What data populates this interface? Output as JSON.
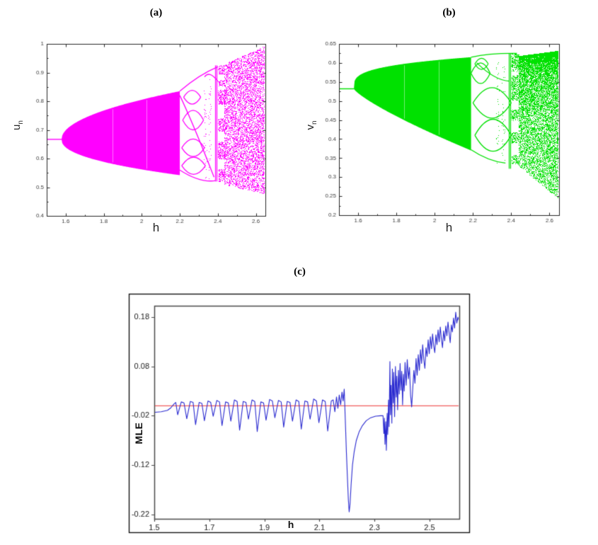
{
  "page": {
    "background": "#ffffff"
  },
  "chart_data": [
    {
      "id": "a",
      "type": "bifurcation-scatter",
      "title": "(a)",
      "xlabel": "h",
      "ylabel_display": "u_n",
      "ylabel_main": "u",
      "ylabel_sub": "n",
      "color": "#ff00ff",
      "axis_color": "#262626",
      "tick_label_color": "#404040",
      "xlim": [
        1.5,
        2.65
      ],
      "ylim": [
        0.4,
        1.0
      ],
      "xticks": [
        1.6,
        1.8,
        2,
        2.2,
        2.4,
        2.6
      ],
      "yticks": [
        0.4,
        0.5,
        0.6,
        0.7,
        0.8,
        0.9,
        1
      ],
      "fixed_point": {
        "y": 0.667,
        "h_start": 1.5,
        "h_end": 1.578
      },
      "ns_band": {
        "h0": 1.578,
        "h1": 2.2,
        "top_amp": 0.168,
        "top_exp": 0.5,
        "bot_amp": 0.125,
        "bot_exp": 0.45
      },
      "white_striations": [
        1.845,
        2.025
      ],
      "window": {
        "h0": 2.2,
        "h1": 2.435,
        "bubbles": [
          [
            2.21,
            2.335,
            0.545,
            0.605
          ],
          [
            2.21,
            2.33,
            0.607,
            0.668
          ],
          [
            2.215,
            2.325,
            0.7,
            0.768
          ],
          [
            2.22,
            2.31,
            0.79,
            0.838
          ]
        ],
        "curves": [
          [
            2.2,
            0.835,
            2.3,
            0.885,
            2.4,
            0.92
          ],
          [
            2.2,
            0.82,
            2.28,
            0.7,
            2.38,
            0.535
          ],
          [
            2.2,
            0.56,
            2.3,
            0.528,
            2.39,
            0.523
          ],
          [
            2.33,
            0.885,
            2.36,
            0.893,
            2.4,
            0.87
          ]
        ],
        "dot_columns": [
          [
            2.33,
            2.372,
            0.52,
            0.9
          ]
        ],
        "vlines": [
          [
            2.387,
            0.52,
            0.925
          ],
          [
            2.395,
            0.52,
            0.925
          ]
        ],
        "stub_bands": [
          [
            2.401,
            2.435,
            0.52,
            0.565
          ],
          [
            2.401,
            2.435,
            0.6,
            0.66
          ],
          [
            2.401,
            2.435,
            0.695,
            0.74
          ],
          [
            2.401,
            2.435,
            0.79,
            0.84
          ],
          [
            2.401,
            2.435,
            0.855,
            0.875
          ],
          [
            2.401,
            2.435,
            0.895,
            0.925
          ]
        ]
      },
      "chaos": {
        "h0": 2.435,
        "h1": 2.65,
        "top": [
          0.93,
          0.995
        ],
        "bottom": [
          0.51,
          0.476
        ],
        "density": 0.5,
        "fade": "none"
      }
    },
    {
      "id": "b",
      "type": "bifurcation-scatter",
      "title": "(b)",
      "xlabel": "h",
      "ylabel_display": "v_n",
      "ylabel_main": "v",
      "ylabel_sub": "n",
      "color": "#00e100",
      "axis_color": "#262626",
      "tick_label_color": "#404040",
      "xlim": [
        1.5,
        2.65
      ],
      "ylim": [
        0.2,
        0.65
      ],
      "xticks": [
        1.6,
        1.8,
        2,
        2.2,
        2.4,
        2.6
      ],
      "yticks": [
        0.2,
        0.25,
        0.3,
        0.35,
        0.4,
        0.45,
        0.5,
        0.55,
        0.6,
        0.65
      ],
      "fixed_point": {
        "y": 0.532,
        "h_start": 1.5,
        "h_end": 1.578
      },
      "ns_band": {
        "h0": 1.578,
        "h1": 2.19,
        "top_amp": 0.083,
        "top_exp": 0.28,
        "bot_amp": 0.162,
        "bot_exp": 0.8
      },
      "white_striations": [
        1.84,
        2.02
      ],
      "window": {
        "h0": 2.19,
        "h1": 2.44,
        "bubbles": [
          [
            2.19,
            2.29,
            0.546,
            0.6
          ],
          [
            2.2,
            2.4,
            0.455,
            0.535
          ],
          [
            2.21,
            2.4,
            0.368,
            0.452
          ],
          [
            2.21,
            2.28,
            0.583,
            0.612
          ]
        ],
        "curves": [
          [
            2.19,
            0.615,
            2.3,
            0.623,
            2.43,
            0.625
          ],
          [
            2.19,
            0.372,
            2.28,
            0.348,
            2.37,
            0.337
          ],
          [
            2.22,
            0.6,
            2.31,
            0.565,
            2.39,
            0.552
          ]
        ],
        "dot_columns": [
          [
            2.325,
            2.362,
            0.335,
            0.605
          ]
        ],
        "vlines": [
          [
            2.386,
            0.322,
            0.625
          ],
          [
            2.394,
            0.322,
            0.625
          ]
        ],
        "stub_bands": [
          [
            2.4,
            2.44,
            0.335,
            0.358
          ],
          [
            2.4,
            2.44,
            0.39,
            0.418
          ],
          [
            2.4,
            2.44,
            0.45,
            0.478
          ],
          [
            2.4,
            2.44,
            0.502,
            0.568
          ],
          [
            2.4,
            2.44,
            0.578,
            0.625
          ]
        ]
      },
      "chaos": {
        "h0": 2.44,
        "h1": 2.65,
        "top": [
          0.618,
          0.632
        ],
        "bottom": [
          0.33,
          0.242
        ],
        "density": 1.1,
        "fade": "bottom"
      }
    },
    {
      "id": "c",
      "type": "line",
      "title": "(c)",
      "xlabel": "h",
      "ylabel": "MLE",
      "line_color": "#2a2ad0",
      "axis_color": "#4a4a4a",
      "frame_color": "#141414",
      "tick_label_color": "#1a1a1a",
      "zero_line": {
        "y": 0,
        "color": "#f25c5c"
      },
      "xlim": [
        1.5,
        2.608
      ],
      "ylim": [
        -0.229,
        0.203
      ],
      "xticks": [
        1.5,
        1.7,
        1.9,
        2.1,
        2.3,
        2.5
      ],
      "yticks": [
        0.18,
        0.08,
        -0.02,
        -0.12,
        -0.22
      ],
      "points": [
        [
          1.5,
          -0.013
        ],
        [
          1.525,
          -0.012
        ],
        [
          1.548,
          -0.009
        ],
        [
          1.56,
          -0.004
        ],
        [
          1.572,
          0.004
        ],
        [
          1.578,
          0.007
        ],
        [
          1.585,
          -0.018
        ],
        [
          1.598,
          0.008
        ],
        [
          1.608,
          0.006
        ],
        [
          1.618,
          -0.026
        ],
        [
          1.631,
          0.009
        ],
        [
          1.641,
          0.007
        ],
        [
          1.65,
          -0.038
        ],
        [
          1.663,
          0.007
        ],
        [
          1.673,
          0.005
        ],
        [
          1.682,
          -0.03
        ],
        [
          1.695,
          0.01
        ],
        [
          1.705,
          0.007
        ],
        [
          1.714,
          -0.021
        ],
        [
          1.727,
          0.011
        ],
        [
          1.737,
          0.008
        ],
        [
          1.746,
          -0.04
        ],
        [
          1.759,
          0.008
        ],
        [
          1.769,
          0.006
        ],
        [
          1.778,
          -0.031
        ],
        [
          1.791,
          0.012
        ],
        [
          1.801,
          0.009
        ],
        [
          1.81,
          -0.049
        ],
        [
          1.823,
          0.009
        ],
        [
          1.833,
          0.007
        ],
        [
          1.842,
          -0.027
        ],
        [
          1.855,
          0.012
        ],
        [
          1.865,
          0.009
        ],
        [
          1.874,
          -0.052
        ],
        [
          1.887,
          0.008
        ],
        [
          1.897,
          0.006
        ],
        [
          1.906,
          -0.029
        ],
        [
          1.919,
          0.013
        ],
        [
          1.929,
          0.01
        ],
        [
          1.938,
          -0.024
        ],
        [
          1.951,
          0.011
        ],
        [
          1.961,
          0.008
        ],
        [
          1.97,
          -0.043
        ],
        [
          1.983,
          0.009
        ],
        [
          1.993,
          0.007
        ],
        [
          2.002,
          -0.031
        ],
        [
          2.015,
          0.012
        ],
        [
          2.025,
          0.009
        ],
        [
          2.034,
          -0.047
        ],
        [
          2.047,
          0.01
        ],
        [
          2.057,
          0.008
        ],
        [
          2.066,
          -0.027
        ],
        [
          2.079,
          0.014
        ],
        [
          2.089,
          0.01
        ],
        [
          2.098,
          -0.034
        ],
        [
          2.111,
          0.012
        ],
        [
          2.121,
          0.009
        ],
        [
          2.13,
          -0.051
        ],
        [
          2.143,
          0.01
        ],
        [
          2.15,
          0.012
        ],
        [
          2.156,
          -0.012
        ],
        [
          2.162,
          0.018
        ],
        [
          2.167,
          -0.005
        ],
        [
          2.172,
          0.022
        ],
        [
          2.177,
          0.002
        ],
        [
          2.182,
          0.028
        ],
        [
          2.186,
          0.01
        ],
        [
          2.19,
          0.034
        ],
        [
          2.194,
          -0.03
        ],
        [
          2.198,
          -0.095
        ],
        [
          2.202,
          -0.15
        ],
        [
          2.205,
          -0.19
        ],
        [
          2.208,
          -0.215
        ],
        [
          2.211,
          -0.2
        ],
        [
          2.215,
          -0.16
        ],
        [
          2.22,
          -0.12
        ],
        [
          2.226,
          -0.094
        ],
        [
          2.234,
          -0.07
        ],
        [
          2.244,
          -0.053
        ],
        [
          2.256,
          -0.04
        ],
        [
          2.27,
          -0.03
        ],
        [
          2.286,
          -0.024
        ],
        [
          2.304,
          -0.021
        ],
        [
          2.322,
          -0.02
        ],
        [
          2.331,
          -0.02
        ],
        [
          2.334,
          -0.056
        ],
        [
          2.336,
          -0.025
        ],
        [
          2.338,
          -0.078
        ],
        [
          2.341,
          -0.032
        ],
        [
          2.343,
          -0.09
        ],
        [
          2.346,
          -0.015
        ],
        [
          2.348,
          -0.058
        ],
        [
          2.351,
          0.012
        ],
        [
          2.353,
          -0.042
        ],
        [
          2.356,
          0.09
        ],
        [
          2.358,
          -0.018
        ],
        [
          2.36,
          0.042
        ],
        [
          2.363,
          -0.035
        ],
        [
          2.365,
          0.075
        ],
        [
          2.368,
          0.006
        ],
        [
          2.37,
          0.068
        ],
        [
          2.373,
          -0.022
        ],
        [
          2.376,
          0.08
        ],
        [
          2.379,
          0.018
        ],
        [
          2.381,
          0.06
        ],
        [
          2.384,
          -0.008
        ],
        [
          2.387,
          0.072
        ],
        [
          2.39,
          0.024
        ],
        [
          2.393,
          0.086
        ],
        [
          2.396,
          0.032
        ],
        [
          2.399,
          0.07
        ],
        [
          2.402,
          0.002
        ],
        [
          2.405,
          0.064
        ],
        [
          2.408,
          0.03
        ],
        [
          2.411,
          0.088
        ],
        [
          2.415,
          0.042
        ],
        [
          2.419,
          0.094
        ],
        [
          2.423,
          0.055
        ],
        [
          2.427,
          0.078
        ],
        [
          2.431,
          0.022
        ],
        [
          2.435,
          -0.002
        ],
        [
          2.439,
          0.036
        ],
        [
          2.443,
          0.072
        ],
        [
          2.447,
          0.046
        ],
        [
          2.451,
          0.096
        ],
        [
          2.455,
          0.062
        ],
        [
          2.459,
          0.104
        ],
        [
          2.463,
          0.072
        ],
        [
          2.467,
          0.114
        ],
        [
          2.471,
          0.086
        ],
        [
          2.475,
          0.124
        ],
        [
          2.479,
          0.094
        ],
        [
          2.483,
          0.076
        ],
        [
          2.487,
          0.118
        ],
        [
          2.491,
          0.1
        ],
        [
          2.495,
          0.134
        ],
        [
          2.499,
          0.106
        ],
        [
          2.503,
          0.14
        ],
        [
          2.507,
          0.116
        ],
        [
          2.511,
          0.146
        ],
        [
          2.515,
          0.122
        ],
        [
          2.519,
          0.108
        ],
        [
          2.523,
          0.144
        ],
        [
          2.527,
          0.124
        ],
        [
          2.531,
          0.154
        ],
        [
          2.535,
          0.13
        ],
        [
          2.539,
          0.16
        ],
        [
          2.543,
          0.136
        ],
        [
          2.547,
          0.118
        ],
        [
          2.551,
          0.152
        ],
        [
          2.555,
          0.132
        ],
        [
          2.559,
          0.162
        ],
        [
          2.563,
          0.142
        ],
        [
          2.567,
          0.17
        ],
        [
          2.571,
          0.148
        ],
        [
          2.575,
          0.128
        ],
        [
          2.579,
          0.164
        ],
        [
          2.583,
          0.15
        ],
        [
          2.587,
          0.178
        ],
        [
          2.591,
          0.158
        ],
        [
          2.595,
          0.19
        ],
        [
          2.599,
          0.168
        ],
        [
          2.603,
          0.18
        ],
        [
          2.607,
          0.172
        ]
      ]
    }
  ]
}
